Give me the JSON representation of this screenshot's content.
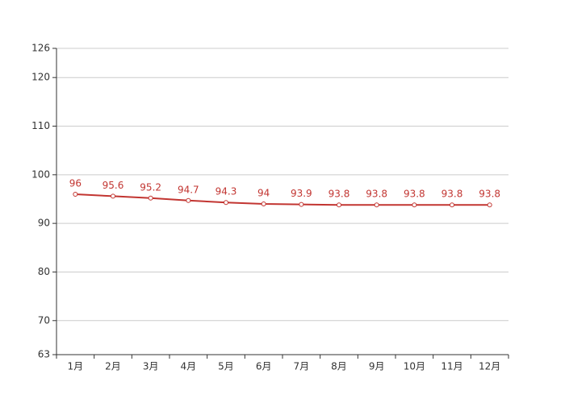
{
  "chart_data": {
    "type": "line",
    "categories": [
      "1月",
      "2月",
      "3月",
      "4月",
      "5月",
      "6月",
      "7月",
      "8月",
      "9月",
      "10月",
      "11月",
      "12月"
    ],
    "values": [
      96,
      95.6,
      95.2,
      94.7,
      94.3,
      94,
      93.9,
      93.8,
      93.8,
      93.8,
      93.8,
      93.8
    ],
    "color": "#c23531",
    "ylim": [
      63,
      126
    ],
    "yticks": [
      63,
      70,
      80,
      90,
      100,
      110,
      120,
      126
    ],
    "grid": true
  }
}
